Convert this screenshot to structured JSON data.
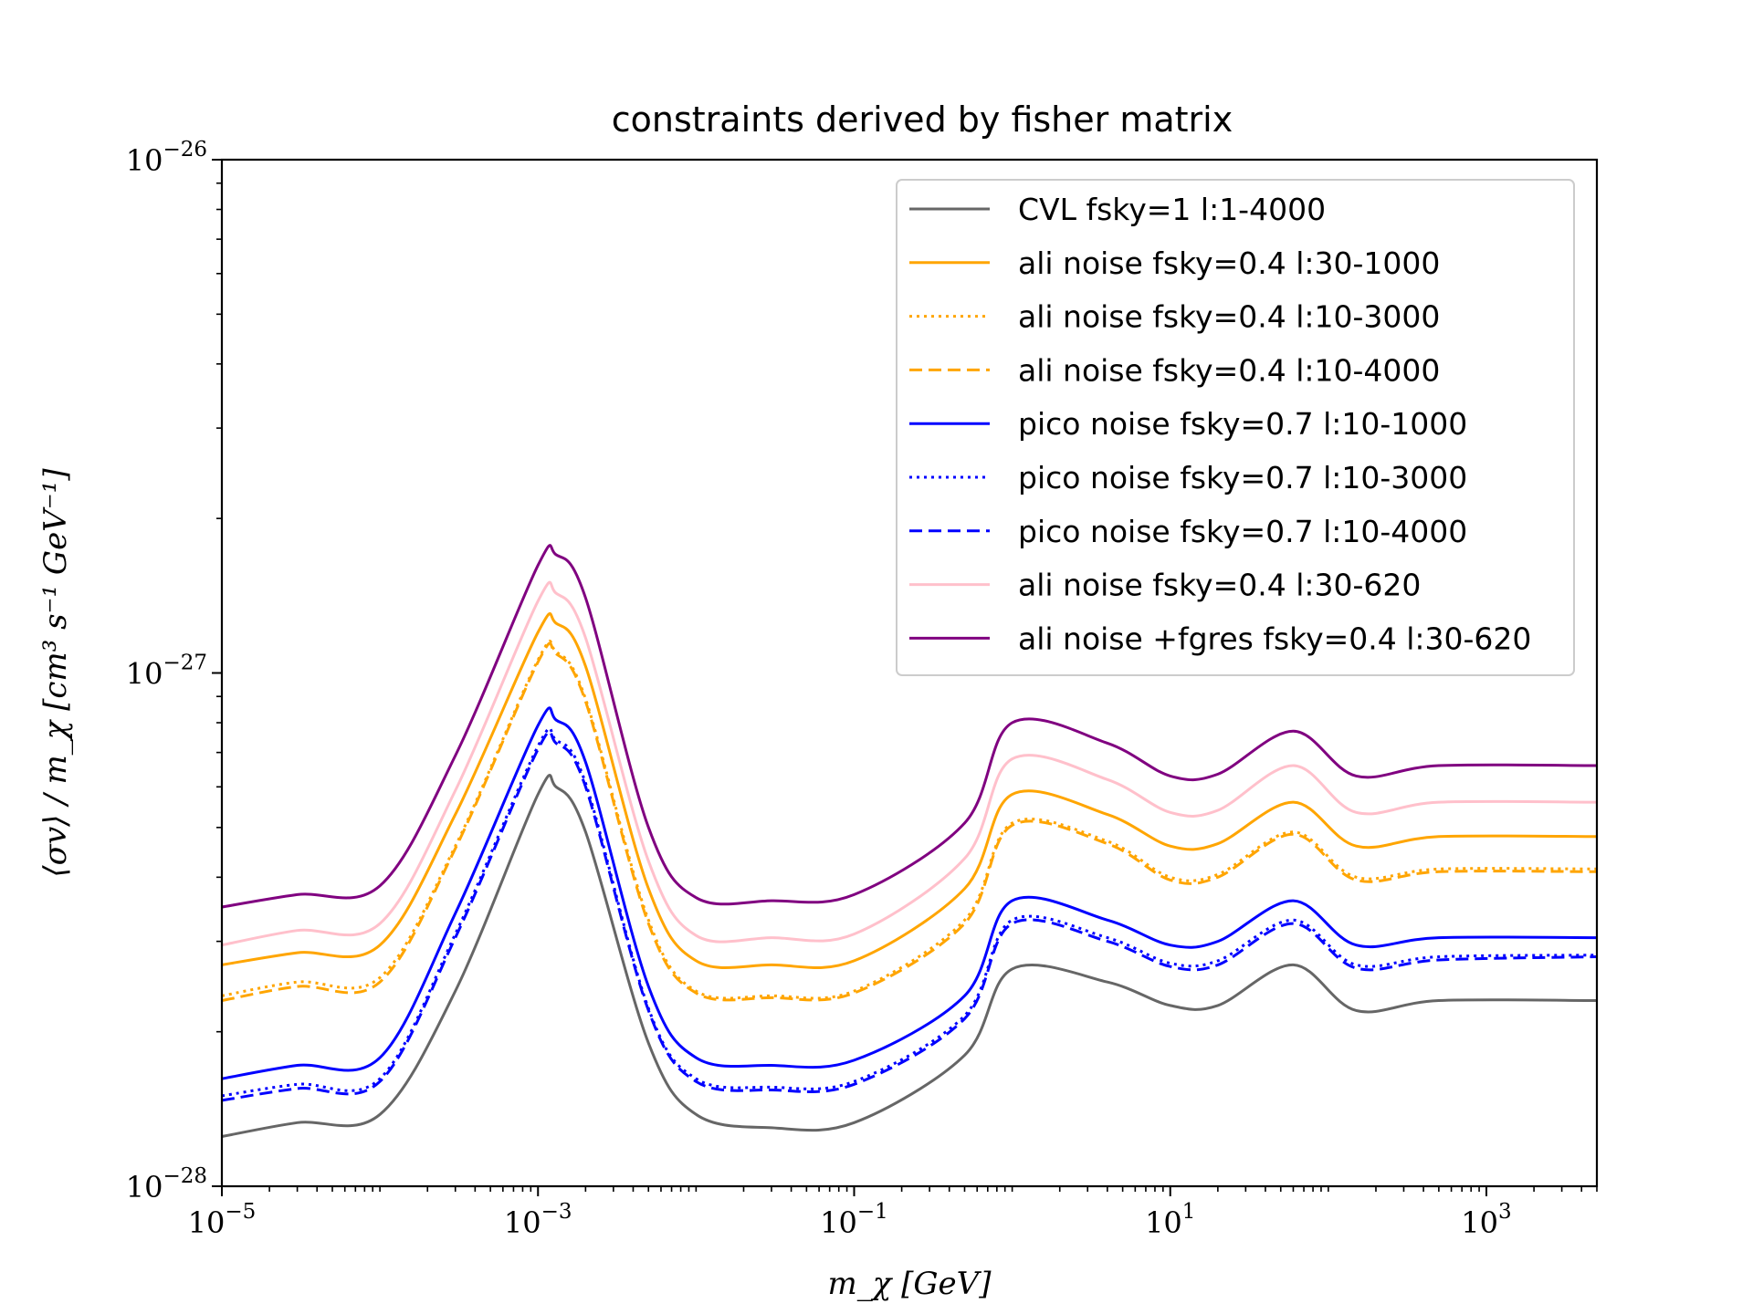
{
  "chart_data": {
    "type": "line",
    "title": "constraints derived by fisher matrix",
    "xlabel": "m_χ [GeV]",
    "ylabel": "⟨σv⟩ / m_χ [cm³ s⁻¹ GeV⁻¹]",
    "xscale": "log",
    "yscale": "log",
    "xlim": [
      1e-05,
      5000
    ],
    "ylim": [
      1e-28,
      1e-26
    ],
    "grid": false,
    "legend_position": "top-right",
    "x_ticks": [
      {
        "base": "10",
        "exp": "−5"
      },
      {
        "base": "10",
        "exp": "−3"
      },
      {
        "base": "10",
        "exp": "−1"
      },
      {
        "base": "10",
        "exp": "1"
      },
      {
        "base": "10",
        "exp": "3"
      }
    ],
    "y_ticks": [
      {
        "base": "10",
        "exp": "−28"
      },
      {
        "base": "10",
        "exp": "−27"
      },
      {
        "base": "10",
        "exp": "−26"
      }
    ],
    "x": [
      1e-05,
      3e-05,
      0.0001,
      0.0003,
      0.001,
      0.0013,
      0.002,
      0.005,
      0.01,
      0.03,
      0.1,
      0.5,
      1,
      4,
      10,
      20,
      60,
      150,
      500,
      5000
    ],
    "series": [
      {
        "name": "CVL fsky=1 l:1-4000",
        "color": "#666666",
        "dash": "solid",
        "values": [
          1.25e-28,
          1.33e-28,
          1.38e-28,
          2.4e-28,
          5.8e-28,
          6e-28,
          4.9e-28,
          1.9e-28,
          1.38e-28,
          1.3e-28,
          1.33e-28,
          1.8e-28,
          2.65e-28,
          2.5e-28,
          2.25e-28,
          2.25e-28,
          2.7e-28,
          2.2e-28,
          2.3e-28,
          2.3e-28
        ]
      },
      {
        "name": "ali noise fsky=0.4 l:30-1000",
        "color": "#ffa500",
        "dash": "solid",
        "values": [
          2.7e-28,
          2.85e-28,
          2.95e-28,
          5.3e-28,
          1.2e-27,
          1.25e-27,
          1.03e-27,
          3.8e-28,
          2.75e-28,
          2.7e-28,
          2.75e-28,
          3.8e-28,
          5.8e-28,
          5.3e-28,
          4.6e-28,
          4.65e-28,
          5.6e-28,
          4.6e-28,
          4.8e-28,
          4.8e-28
        ]
      },
      {
        "name": "ali noise fsky=0.4 l:10-3000",
        "color": "#ffa500",
        "dash": "dotted",
        "values": [
          2.35e-28,
          2.5e-28,
          2.55e-28,
          4.6e-28,
          1.06e-27,
          1.1e-27,
          8.9e-28,
          3.3e-28,
          2.4e-28,
          2.35e-28,
          2.4e-28,
          3.3e-28,
          5.1e-28,
          4.7e-28,
          4e-28,
          4.05e-28,
          4.9e-28,
          4e-28,
          4.15e-28,
          4.15e-28
        ]
      },
      {
        "name": "ali noise fsky=0.4 l:10-4000",
        "color": "#ffa500",
        "dash": "dashed",
        "values": [
          2.3e-28,
          2.45e-28,
          2.5e-28,
          4.55e-28,
          1.05e-27,
          1.09e-27,
          8.8e-28,
          3.25e-28,
          2.38e-28,
          2.33e-28,
          2.38e-28,
          3.25e-28,
          5.05e-28,
          4.65e-28,
          3.95e-28,
          4e-28,
          4.85e-28,
          3.95e-28,
          4.1e-28,
          4.1e-28
        ]
      },
      {
        "name": "pico noise fsky=0.7 l:10-1000",
        "color": "#0000ff",
        "dash": "solid",
        "values": [
          1.62e-28,
          1.72e-28,
          1.78e-28,
          3.4e-28,
          7.9e-28,
          8.1e-28,
          6.7e-28,
          2.45e-28,
          1.78e-28,
          1.72e-28,
          1.76e-28,
          2.35e-28,
          3.6e-28,
          3.3e-28,
          2.95e-28,
          3e-28,
          3.6e-28,
          2.95e-28,
          3.05e-28,
          3.05e-28
        ]
      },
      {
        "name": "pico noise fsky=0.7 l:10-3000",
        "color": "#0000ff",
        "dash": "dotted",
        "values": [
          1.5e-28,
          1.58e-28,
          1.62e-28,
          3.1e-28,
          7.2e-28,
          7.4e-28,
          6.1e-28,
          2.22e-28,
          1.62e-28,
          1.56e-28,
          1.6e-28,
          2.15e-28,
          3.3e-28,
          3.05e-28,
          2.72e-28,
          2.75e-28,
          3.3e-28,
          2.7e-28,
          2.8e-28,
          2.82e-28
        ]
      },
      {
        "name": "pico noise fsky=0.7 l:10-4000",
        "color": "#0000ff",
        "dash": "dashed",
        "values": [
          1.47e-28,
          1.55e-28,
          1.6e-28,
          3.05e-28,
          7.1e-28,
          7.3e-28,
          6e-28,
          2.2e-28,
          1.6e-28,
          1.54e-28,
          1.58e-28,
          2.12e-28,
          3.25e-28,
          3e-28,
          2.68e-28,
          2.7e-28,
          3.25e-28,
          2.66e-28,
          2.76e-28,
          2.8e-28
        ]
      },
      {
        "name": "ali noise fsky=0.4 l:30-620",
        "color": "#ffc0cb",
        "dash": "solid",
        "values": [
          2.95e-28,
          3.15e-28,
          3.25e-28,
          5.9e-28,
          1.38e-27,
          1.43e-27,
          1.17e-27,
          4.3e-28,
          3.08e-28,
          3.05e-28,
          3.1e-28,
          4.35e-28,
          6.8e-28,
          6.2e-28,
          5.35e-28,
          5.4e-28,
          6.6e-28,
          5.35e-28,
          5.6e-28,
          5.6e-28
        ]
      },
      {
        "name": "ali noise +fgres fsky=0.4 l:30-620",
        "color": "#800080",
        "dash": "solid",
        "values": [
          3.5e-28,
          3.7e-28,
          3.85e-28,
          6.9e-28,
          1.62e-27,
          1.7e-27,
          1.4e-27,
          5e-28,
          3.65e-28,
          3.6e-28,
          3.7e-28,
          5.1e-28,
          8e-28,
          7.3e-28,
          6.3e-28,
          6.35e-28,
          7.7e-28,
          6.3e-28,
          6.6e-28,
          6.6e-28
        ]
      }
    ]
  }
}
